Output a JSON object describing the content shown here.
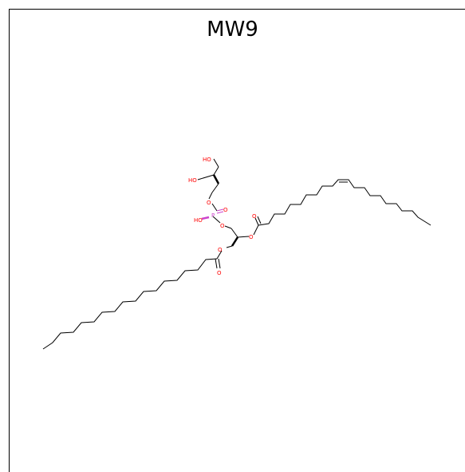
{
  "title": "MW9",
  "colors": {
    "bond": "#000000",
    "oxygen": "#ff0000",
    "phosphorus": "#cc44cc"
  },
  "labels": {
    "ho_top": "HO",
    "ho_mid": "HO",
    "o_glycerol_link": "O",
    "p": "P",
    "o_double": "O",
    "p_oh": "HO",
    "o_ester_p": "O",
    "o_ester_sn2": "O",
    "carbonyl_sn2": "O",
    "o_ester_sn1": "O",
    "carbonyl_sn1": "O"
  }
}
